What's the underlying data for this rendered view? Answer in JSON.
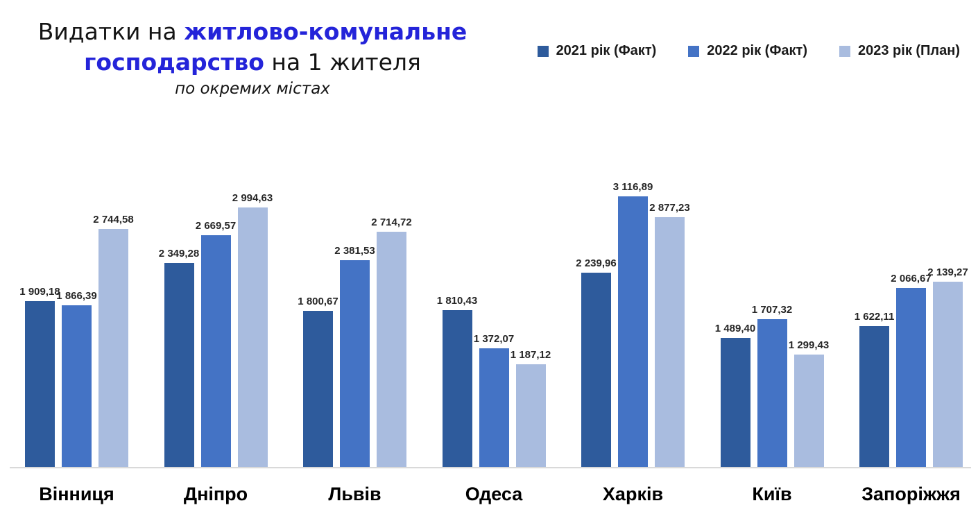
{
  "header": {
    "title_line1_black": "Видатки на ",
    "title_line1_blue": "житлово-комунальне",
    "title_line2_blue": "господарство",
    "title_line2_black": " на 1 жителя",
    "subtitle": "по окремих містах",
    "highlight_color": "#2424d9"
  },
  "legend": [
    {
      "label": "2021 рік (Факт)",
      "color": "#2e5b9c"
    },
    {
      "label": "2022 рік (Факт)",
      "color": "#4473c5"
    },
    {
      "label": "2023 рік (План)",
      "color": "#a9bcdf"
    }
  ],
  "chart_data": {
    "type": "bar",
    "title": "Видатки на житлово-комунальне господарство на 1 жителя",
    "subtitle": "по окремих містах",
    "xlabel": "",
    "ylabel": "",
    "ylim": [
      0,
      3300
    ],
    "grid": false,
    "legend_position": "top-right",
    "categories": [
      "Вінниця",
      "Дніпро",
      "Львів",
      "Одеса",
      "Харків",
      "Київ",
      "Запоріжжя"
    ],
    "series": [
      {
        "name": "2021 рік (Факт)",
        "color": "#2e5b9c",
        "values": [
          1909.18,
          2349.28,
          1800.67,
          1810.43,
          2239.96,
          1489.4,
          1622.11
        ],
        "labels": [
          "1 909,18",
          "2 349,28",
          "1 800,67",
          "1 810,43",
          "2 239,96",
          "1 489,40",
          "1 622,11"
        ]
      },
      {
        "name": "2022 рік (Факт)",
        "color": "#4473c5",
        "values": [
          1866.39,
          2669.57,
          2381.53,
          1372.07,
          3116.89,
          1707.32,
          2066.67
        ],
        "labels": [
          "1 866,39",
          "2 669,57",
          "2 381,53",
          "1 372,07",
          "3 116,89",
          "1 707,32",
          "2 066,67"
        ]
      },
      {
        "name": "2023 рік (План)",
        "color": "#a9bcdf",
        "values": [
          2744.58,
          2994.63,
          2714.72,
          1187.12,
          2877.23,
          1299.43,
          2139.27
        ],
        "labels": [
          "2 744,58",
          "2 994,63",
          "2 714,72",
          "1 187,12",
          "2 877,23",
          "1 299,43",
          "2 139,27"
        ]
      }
    ]
  }
}
